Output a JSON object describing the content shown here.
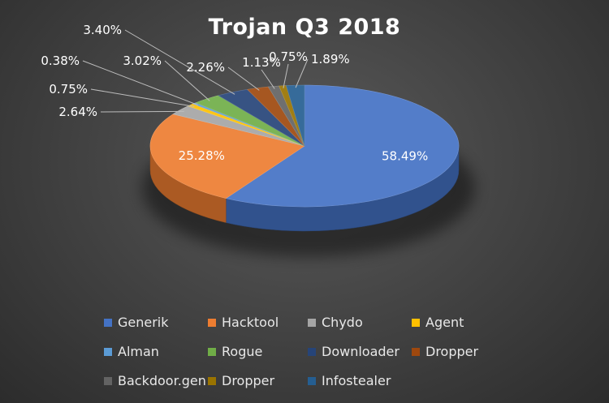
{
  "chart_data": {
    "type": "pie",
    "title": "Trojan Q3 2018",
    "legend_position": "bottom",
    "slices": [
      {
        "name": "Generik",
        "value": 58.49,
        "label": "58.49%",
        "color": "#4472C4"
      },
      {
        "name": "Hacktool",
        "value": 25.28,
        "label": "25.28%",
        "color": "#ED7D31"
      },
      {
        "name": "Chydo",
        "value": 2.64,
        "label": "2.64%",
        "color": "#A5A5A5"
      },
      {
        "name": "Agent",
        "value": 0.75,
        "label": "0.75%",
        "color": "#FFC000"
      },
      {
        "name": "Alman",
        "value": 0.38,
        "label": "0.38%",
        "color": "#5B9BD5"
      },
      {
        "name": "Rogue",
        "value": 3.02,
        "label": "3.02%",
        "color": "#70AD47"
      },
      {
        "name": "Downloader",
        "value": 3.4,
        "label": "3.40%",
        "color": "#264478"
      },
      {
        "name": "Dropper",
        "value": 2.26,
        "label": "2.26%",
        "color": "#9E480E"
      },
      {
        "name": "Backdoor.gen",
        "value": 1.13,
        "label": "1.13%",
        "color": "#636363"
      },
      {
        "name": "Dropper",
        "value": 0.75,
        "label": "0.75%",
        "color": "#997300"
      },
      {
        "name": "Infostealer",
        "value": 1.89,
        "label": "1.89%",
        "color": "#255E91"
      }
    ]
  }
}
